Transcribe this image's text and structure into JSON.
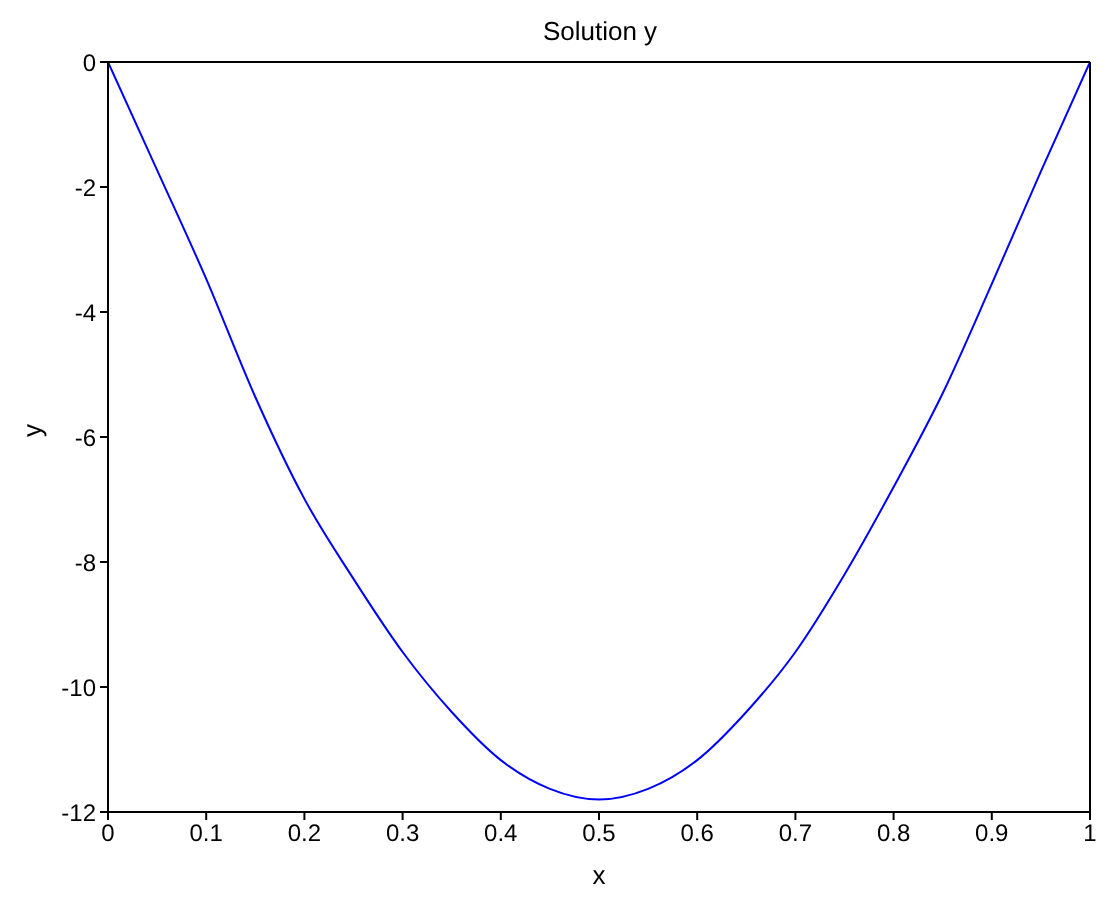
{
  "chart_data": {
    "type": "line",
    "title": "Solution y",
    "xlabel": "x",
    "ylabel": "y",
    "x": [
      0,
      0.05,
      0.1,
      0.15,
      0.2,
      0.25,
      0.3,
      0.35,
      0.4,
      0.45,
      0.5,
      0.55,
      0.6,
      0.65,
      0.7,
      0.75,
      0.8,
      0.85,
      0.9,
      0.95,
      1
    ],
    "series": [
      {
        "color": "#0000ff",
        "values": [
          0,
          -1.73,
          -3.47,
          -5.36,
          -6.99,
          -8.27,
          -9.44,
          -10.4,
          -11.17,
          -11.63,
          -11.8,
          -11.63,
          -11.17,
          -10.4,
          -9.44,
          -8.2,
          -6.8,
          -5.3,
          -3.55,
          -1.75,
          0
        ]
      }
    ],
    "xlim": [
      0,
      1
    ],
    "xticks": [
      0,
      0.1,
      0.2,
      0.3,
      0.4,
      0.5,
      0.6,
      0.7,
      0.8,
      0.9,
      1
    ],
    "ylim": [
      -12,
      0
    ],
    "yticks": [
      -12,
      -10,
      -8,
      -6,
      -4,
      -2,
      0
    ],
    "grid": false,
    "legend": false,
    "marker": "none",
    "line_style": "solid"
  }
}
